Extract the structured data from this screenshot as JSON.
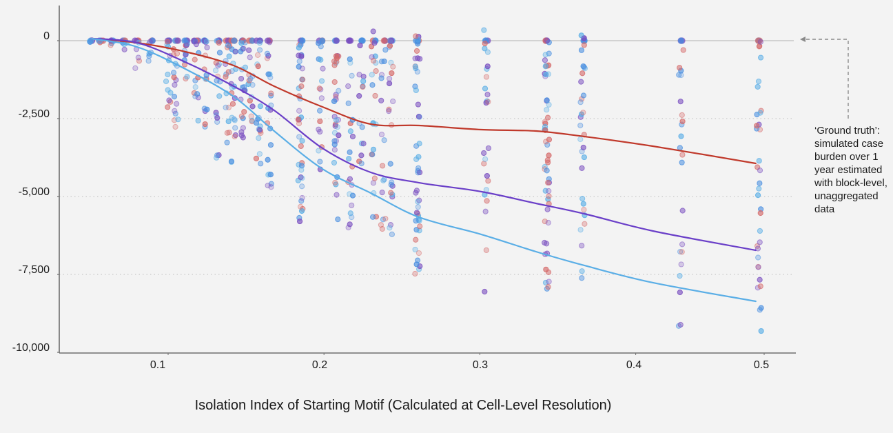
{
  "chart_data": {
    "type": "scatter",
    "title": "",
    "xlabel": "Isolation Index of Starting Motif (Calculated at Cell-Level Resolution)",
    "ylabel": "",
    "xlim": [
      0.045,
      0.51
    ],
    "ylim": [
      -10000,
      1100
    ],
    "grid": "horizontal-dotted",
    "x_ticks": [
      0.1,
      0.2,
      0.3,
      0.4,
      0.5
    ],
    "x_tick_labels": [
      "0.1",
      "0.2",
      "0.3",
      "0.4",
      "0.5"
    ],
    "y_ticks": [
      0,
      -2500,
      -5000,
      -7500,
      -10000
    ],
    "y_tick_labels": [
      "0",
      "-2,500",
      "-5,000",
      "-7,500",
      "-10,000"
    ],
    "reference_line": {
      "y": 0,
      "label": "Ground truth"
    },
    "annotation": "‘Ground truth’: simulated case burden over 1 year estimated with block-level, unaggregated data",
    "colors": {
      "red": "#c0392b",
      "purple": "#6a3fc8",
      "lightblue": "#5aaee6",
      "scatter_red": "#d56a6a",
      "scatter_purple": "#7a4fc0",
      "scatter_blue": "#4a8fe0",
      "axis": "#6e6e6e",
      "grid": "#bdbdbd",
      "zero_line": "#c8c8c8"
    },
    "series": [
      {
        "name": "red-trend",
        "kind": "line",
        "color": "#c0392b",
        "x": [
          0.051,
          0.08,
          0.111,
          0.142,
          0.168,
          0.199,
          0.23,
          0.261,
          0.301,
          0.336,
          0.367,
          0.411,
          0.477
        ],
        "y": [
          66,
          -66,
          -354,
          -796,
          -1460,
          -2124,
          -2677,
          -2721,
          -2854,
          -2898,
          -3075,
          -3385,
          -3938
        ]
      },
      {
        "name": "purple-trend",
        "kind": "line",
        "color": "#6a3fc8",
        "x": [
          0.051,
          0.08,
          0.111,
          0.142,
          0.168,
          0.199,
          0.23,
          0.261,
          0.301,
          0.336,
          0.367,
          0.411,
          0.477
        ],
        "y": [
          66,
          -66,
          -686,
          -1460,
          -2235,
          -3451,
          -4226,
          -4558,
          -4845,
          -5221,
          -5553,
          -6106,
          -6726
        ]
      },
      {
        "name": "lightblue-trend",
        "kind": "line",
        "color": "#5aaee6",
        "x": [
          0.051,
          0.08,
          0.111,
          0.142,
          0.168,
          0.199,
          0.23,
          0.261,
          0.301,
          0.336,
          0.367,
          0.411,
          0.477
        ],
        "y": [
          66,
          -199,
          -907,
          -1792,
          -2898,
          -4115,
          -4889,
          -5664,
          -6217,
          -6770,
          -7212,
          -7765,
          -8363
        ]
      }
    ],
    "scatter_columns": [
      {
        "x": 0.051,
        "ymin": -100,
        "ymax": 0,
        "n": 3
      },
      {
        "x": 0.057,
        "ymin": -150,
        "ymax": 0,
        "n": 3
      },
      {
        "x": 0.064,
        "ymin": -200,
        "ymax": 0,
        "n": 3
      },
      {
        "x": 0.072,
        "ymin": -300,
        "ymax": 0,
        "n": 4
      },
      {
        "x": 0.08,
        "ymin": -1000,
        "ymax": 0,
        "n": 6
      },
      {
        "x": 0.089,
        "ymin": -850,
        "ymax": 0,
        "n": 6
      },
      {
        "x": 0.1,
        "ymin": -2200,
        "ymax": 0,
        "n": 12
      },
      {
        "x": 0.105,
        "ymin": -2900,
        "ymax": 0,
        "n": 16
      },
      {
        "x": 0.111,
        "ymin": -1600,
        "ymax": 0,
        "n": 10
      },
      {
        "x": 0.118,
        "ymin": -3100,
        "ymax": 0,
        "n": 14
      },
      {
        "x": 0.124,
        "ymin": -3000,
        "ymax": 0,
        "n": 14
      },
      {
        "x": 0.132,
        "ymin": -3900,
        "ymax": 0,
        "n": 18
      },
      {
        "x": 0.138,
        "ymin": -3300,
        "ymax": 0,
        "n": 16
      },
      {
        "x": 0.142,
        "ymin": -4000,
        "ymax": 0,
        "n": 20
      },
      {
        "x": 0.148,
        "ymin": -3800,
        "ymax": 0,
        "n": 20
      },
      {
        "x": 0.153,
        "ymin": -3000,
        "ymax": 0,
        "n": 14
      },
      {
        "x": 0.158,
        "ymin": -4000,
        "ymax": 0,
        "n": 18
      },
      {
        "x": 0.165,
        "ymin": -4800,
        "ymax": 0,
        "n": 22
      },
      {
        "x": 0.185,
        "ymin": -5900,
        "ymax": 0,
        "n": 40
      },
      {
        "x": 0.198,
        "ymin": -4200,
        "ymax": 0,
        "n": 18
      },
      {
        "x": 0.208,
        "ymin": -5800,
        "ymax": 0,
        "n": 32
      },
      {
        "x": 0.217,
        "ymin": -6200,
        "ymax": 200,
        "n": 22
      },
      {
        "x": 0.224,
        "ymin": -4800,
        "ymax": -100,
        "n": 14
      },
      {
        "x": 0.232,
        "ymin": -6200,
        "ymax": 300,
        "n": 22
      },
      {
        "x": 0.238,
        "ymin": -7100,
        "ymax": 0,
        "n": 16
      },
      {
        "x": 0.243,
        "ymin": -6300,
        "ymax": 0,
        "n": 24
      },
      {
        "x": 0.26,
        "ymin": -7500,
        "ymax": 200,
        "n": 48
      },
      {
        "x": 0.304,
        "ymin": -8200,
        "ymax": 400,
        "n": 24
      },
      {
        "x": 0.343,
        "ymin": -8300,
        "ymax": 100,
        "n": 55
      },
      {
        "x": 0.366,
        "ymin": -8100,
        "ymax": 200,
        "n": 32
      },
      {
        "x": 0.429,
        "ymin": -9500,
        "ymax": 0,
        "n": 22
      },
      {
        "x": 0.479,
        "ymin": -9500,
        "ymax": 0,
        "n": 34
      }
    ]
  }
}
